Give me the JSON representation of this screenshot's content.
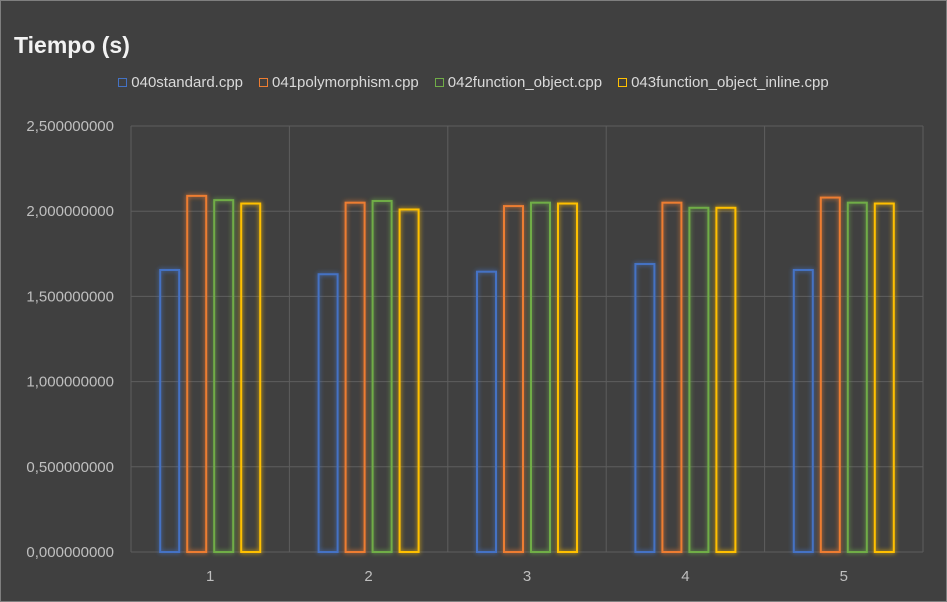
{
  "chart_data": {
    "type": "bar",
    "title": "Tiempo (s)",
    "xlabel": "",
    "ylabel": "",
    "categories": [
      "1",
      "2",
      "3",
      "4",
      "5"
    ],
    "ylim": [
      0,
      2.5
    ],
    "yticks": [
      0,
      0.5,
      1.0,
      1.5,
      2.0,
      2.5
    ],
    "ytick_labels": [
      "0,000000000",
      "0,500000000",
      "1,000000000",
      "1,500000000",
      "2,000000000",
      "2,500000000"
    ],
    "grid": true,
    "legend_position": "top",
    "bar_style": "outlined-glow",
    "series": [
      {
        "name": "040standard.cpp",
        "color": "#4472c4",
        "values": [
          1.655,
          1.63,
          1.645,
          1.69,
          1.655
        ]
      },
      {
        "name": "041polymorphism.cpp",
        "color": "#ed7d31",
        "values": [
          2.09,
          2.05,
          2.03,
          2.05,
          2.08
        ]
      },
      {
        "name": "042function_object.cpp",
        "color": "#70ad47",
        "values": [
          2.065,
          2.06,
          2.05,
          2.02,
          2.05
        ]
      },
      {
        "name": "043function_object_inline.cpp",
        "color": "#ffc000",
        "values": [
          2.045,
          2.01,
          2.045,
          2.02,
          2.045
        ]
      }
    ]
  }
}
